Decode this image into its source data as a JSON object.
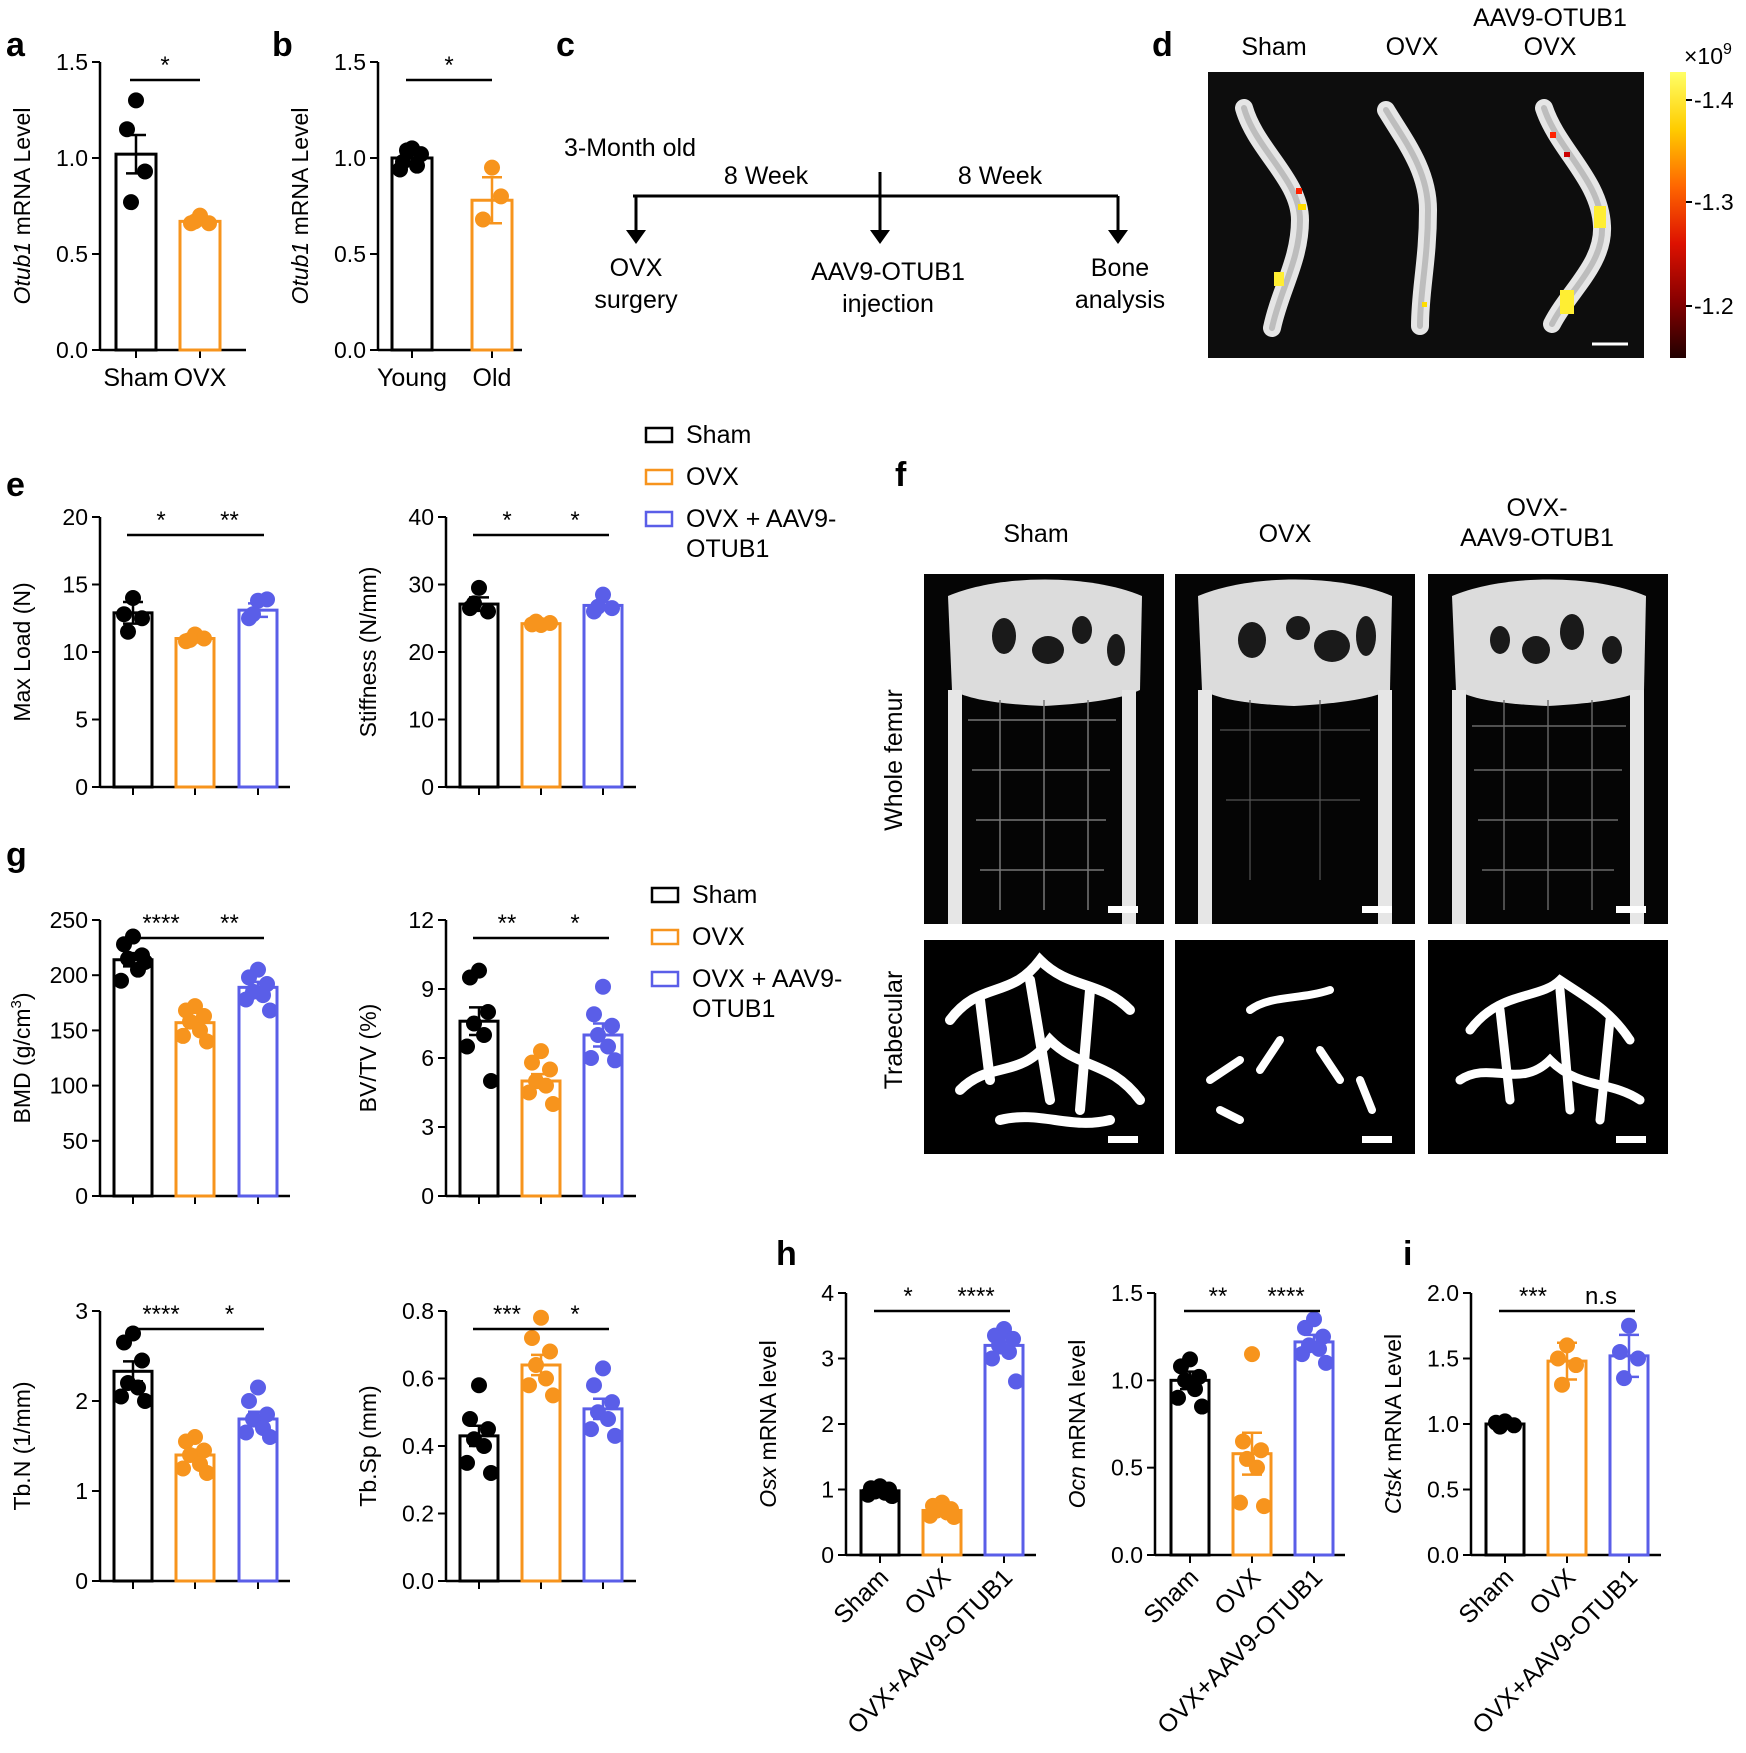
{
  "panel_labels": [
    "a",
    "b",
    "c",
    "d",
    "e",
    "f",
    "g",
    "h",
    "i"
  ],
  "colors": {
    "sham": "#000000",
    "ovx": "#f7941d",
    "aav": "#5a5ee8",
    "text": "#000000"
  },
  "legend": {
    "entries": [
      "Sham",
      "OVX",
      "OVX + AAV9-",
      "OTUB1"
    ]
  },
  "timeline": {
    "start_label": "3-Month old",
    "interval1": "8 Week",
    "interval2": "8 Week",
    "step1": [
      "OVX",
      "surgery"
    ],
    "step2": [
      "AAV9-OTUB1",
      "injection"
    ],
    "step3": [
      "Bone",
      "analysis"
    ]
  },
  "imaging": {
    "headers": [
      "Sham",
      "OVX",
      "AAV9-OTUB1",
      "OVX"
    ],
    "colorbar_exponent_base": "×10",
    "colorbar_exponent_power": "9",
    "colorbar_ticks": [
      "-1.4",
      "-1.3",
      "-1.2"
    ],
    "colorbar_gradient": [
      "#ffff66",
      "#ffcc00",
      "#ff6600",
      "#dd1100",
      "#880000",
      "#220000"
    ]
  },
  "micro_ct": {
    "headers": [
      "Sham",
      "OVX",
      "OVX-",
      "AAV9-OTUB1"
    ],
    "row_labels": [
      "Whole femur",
      "Trabecular"
    ]
  },
  "chart_data": [
    {
      "id": "a",
      "type": "bar",
      "ylabel_italic": "Otub1",
      "ylabel_rest": " mRNA Level",
      "categories": [
        "Sham",
        "OVX"
      ],
      "colors": [
        "sham",
        "ovx"
      ],
      "means": [
        1.02,
        0.67
      ],
      "sem": [
        0.1,
        0.02
      ],
      "points": [
        [
          1.3,
          1.15,
          0.93,
          0.77
        ],
        [
          0.7,
          0.66,
          0.66,
          0.67
        ]
      ],
      "ylim": [
        0,
        1.5
      ],
      "yticks": [
        "0.0",
        "0.5",
        "1.0",
        "1.5"
      ],
      "significance": [
        {
          "from": 0,
          "to": 1,
          "label": "*"
        }
      ]
    },
    {
      "id": "b",
      "type": "bar",
      "ylabel_italic": "Otub1",
      "ylabel_rest": " mRNA Level",
      "categories": [
        "Young",
        "Old"
      ],
      "colors": [
        "sham",
        "ovx"
      ],
      "means": [
        1.0,
        0.78
      ],
      "sem": [
        0.03,
        0.12
      ],
      "points": [
        [
          1.05,
          0.98,
          1.02,
          1.04,
          0.96,
          0.94
        ],
        [
          0.95,
          0.68,
          0.8
        ]
      ],
      "ylim": [
        0,
        1.5
      ],
      "yticks": [
        "0.0",
        "0.5",
        "1.0",
        "1.5"
      ],
      "significance": [
        {
          "from": 0,
          "to": 1,
          "label": "*"
        }
      ]
    },
    {
      "id": "e1",
      "type": "bar",
      "ylabel_italic": "",
      "ylabel_rest": "Max Load (N)",
      "categories": [],
      "colors": [
        "sham",
        "ovx",
        "aav"
      ],
      "means": [
        12.9,
        11.0,
        13.1
      ],
      "sem": [
        0.8,
        0.3,
        0.5
      ],
      "points": [
        [
          14.0,
          12.8,
          12.5,
          11.5
        ],
        [
          11.3,
          10.8,
          11.0,
          10.9
        ],
        [
          13.8,
          12.5,
          13.9,
          12.8
        ]
      ],
      "ylim": [
        0,
        20
      ],
      "yticks": [
        "0",
        "5",
        "10",
        "15",
        "20"
      ],
      "significance": [
        {
          "from": 0,
          "to": 1,
          "label": "*"
        },
        {
          "from": 1,
          "to": 2,
          "label": "**"
        }
      ]
    },
    {
      "id": "e2",
      "type": "bar",
      "ylabel_italic": "",
      "ylabel_rest": "Stiffness (N/mm)",
      "categories": [],
      "colors": [
        "sham",
        "ovx",
        "aav"
      ],
      "means": [
        27.1,
        24.2,
        26.9
      ],
      "sem": [
        1.0,
        0.2,
        0.5
      ],
      "points": [
        [
          29.5,
          26.5,
          26.0,
          27.2
        ],
        [
          24.0,
          24.1,
          24.3,
          24.5
        ],
        [
          28.5,
          26.0,
          26.5,
          26.7
        ]
      ],
      "ylim": [
        0,
        40
      ],
      "yticks": [
        "0",
        "10",
        "20",
        "30",
        "40"
      ],
      "significance": [
        {
          "from": 0,
          "to": 1,
          "label": "*"
        },
        {
          "from": 1,
          "to": 2,
          "label": "*"
        }
      ]
    },
    {
      "id": "g1",
      "type": "bar",
      "ylabel_italic": "",
      "ylabel_rest": "BMD (g/cm",
      "ylabel_sup": "3",
      "ylabel_end": ")",
      "categories": [],
      "colors": [
        "sham",
        "ovx",
        "aav"
      ],
      "means": [
        214,
        157,
        189
      ],
      "sem": [
        6,
        5,
        5
      ],
      "points": [
        [
          235,
          228,
          218,
          215,
          205,
          195,
          212
        ],
        [
          172,
          168,
          163,
          158,
          150,
          145,
          140
        ],
        [
          205,
          198,
          192,
          185,
          182,
          178,
          168
        ]
      ],
      "ylim": [
        0,
        250
      ],
      "yticks": [
        "0",
        "50",
        "100",
        "150",
        "200",
        "250"
      ],
      "significance": [
        {
          "from": 0,
          "to": 1,
          "label": "****"
        },
        {
          "from": 1,
          "to": 2,
          "label": "**"
        }
      ]
    },
    {
      "id": "g2",
      "type": "bar",
      "ylabel_italic": "",
      "ylabel_rest": "BV/TV (%)",
      "categories": [],
      "colors": [
        "sham",
        "ovx",
        "aav"
      ],
      "means": [
        7.6,
        5.0,
        7.0
      ],
      "sem": [
        0.6,
        0.3,
        0.5
      ],
      "points": [
        [
          9.8,
          9.5,
          8.0,
          7.5,
          7.0,
          6.5,
          5.0
        ],
        [
          6.3,
          5.8,
          5.5,
          5.0,
          4.8,
          4.5,
          4.0
        ],
        [
          9.1,
          7.9,
          7.4,
          7.0,
          6.5,
          6.0,
          5.9
        ]
      ],
      "ylim": [
        0,
        12
      ],
      "yticks": [
        "0",
        "3",
        "6",
        "9",
        "12"
      ],
      "significance": [
        {
          "from": 0,
          "to": 1,
          "label": "**"
        },
        {
          "from": 1,
          "to": 2,
          "label": "*"
        }
      ]
    },
    {
      "id": "g3",
      "type": "bar",
      "ylabel_italic": "",
      "ylabel_rest": "Tb.N (1/mm)",
      "categories": [],
      "colors": [
        "sham",
        "ovx",
        "aav"
      ],
      "means": [
        2.33,
        1.4,
        1.8
      ],
      "sem": [
        0.11,
        0.06,
        0.08
      ],
      "points": [
        [
          2.75,
          2.65,
          2.45,
          2.2,
          2.15,
          2.05,
          2.0
        ],
        [
          1.6,
          1.55,
          1.45,
          1.4,
          1.3,
          1.25,
          1.2
        ],
        [
          2.15,
          2.0,
          1.85,
          1.8,
          1.7,
          1.65,
          1.6
        ]
      ],
      "ylim": [
        0,
        3
      ],
      "yticks": [
        "0",
        "1",
        "2",
        "3"
      ],
      "significance": [
        {
          "from": 0,
          "to": 1,
          "label": "****"
        },
        {
          "from": 1,
          "to": 2,
          "label": "*"
        }
      ]
    },
    {
      "id": "g4",
      "type": "bar",
      "ylabel_italic": "",
      "ylabel_rest": "Tb.Sp (mm)",
      "categories": [],
      "colors": [
        "sham",
        "ovx",
        "aav"
      ],
      "means": [
        0.43,
        0.64,
        0.51
      ],
      "sem": [
        0.03,
        0.03,
        0.03
      ],
      "points": [
        [
          0.58,
          0.48,
          0.45,
          0.42,
          0.4,
          0.35,
          0.32
        ],
        [
          0.78,
          0.72,
          0.68,
          0.64,
          0.6,
          0.58,
          0.55
        ],
        [
          0.63,
          0.58,
          0.53,
          0.5,
          0.48,
          0.45,
          0.43
        ]
      ],
      "ylim": [
        0,
        0.8
      ],
      "yticks": [
        "0.0",
        "0.2",
        "0.4",
        "0.6",
        "0.8"
      ],
      "significance": [
        {
          "from": 0,
          "to": 1,
          "label": "***"
        },
        {
          "from": 1,
          "to": 2,
          "label": "*"
        }
      ]
    },
    {
      "id": "h1",
      "type": "bar",
      "ylabel_italic": "Osx",
      "ylabel_rest": " mRNA level",
      "categories": [
        "Sham",
        "OVX",
        "OVX+AAV9-OTUB1"
      ],
      "colors": [
        "sham",
        "ovx",
        "aav"
      ],
      "means": [
        0.98,
        0.68,
        3.2
      ],
      "sem": [
        0.03,
        0.04,
        0.12
      ],
      "points": [
        [
          1.05,
          1.02,
          1.0,
          0.97,
          0.95,
          0.92,
          0.9
        ],
        [
          0.8,
          0.75,
          0.7,
          0.68,
          0.65,
          0.6,
          0.58
        ],
        [
          3.45,
          3.35,
          3.3,
          3.2,
          3.1,
          3.0,
          2.65
        ]
      ],
      "ylim": [
        0,
        4
      ],
      "yticks": [
        "0",
        "1",
        "2",
        "3",
        "4"
      ],
      "significance": [
        {
          "from": 0,
          "to": 1,
          "label": "*"
        },
        {
          "from": 1,
          "to": 2,
          "label": "****"
        }
      ]
    },
    {
      "id": "h2",
      "type": "bar",
      "ylabel_italic": "Ocn",
      "ylabel_rest": " mRNA level",
      "categories": [
        "Sham",
        "OVX",
        "OVX+AAV9-OTUB1"
      ],
      "colors": [
        "sham",
        "ovx",
        "aav"
      ],
      "means": [
        1.0,
        0.58,
        1.22
      ],
      "sem": [
        0.05,
        0.12,
        0.04
      ],
      "points": [
        [
          1.12,
          1.08,
          1.02,
          1.0,
          0.95,
          0.9,
          0.85
        ],
        [
          1.15,
          0.65,
          0.6,
          0.55,
          0.5,
          0.3,
          0.28
        ],
        [
          1.35,
          1.3,
          1.25,
          1.2,
          1.18,
          1.15,
          1.1
        ]
      ],
      "ylim": [
        0,
        1.5
      ],
      "yticks": [
        "0.0",
        "0.5",
        "1.0",
        "1.5"
      ],
      "significance": [
        {
          "from": 0,
          "to": 1,
          "label": "**"
        },
        {
          "from": 1,
          "to": 2,
          "label": "****"
        }
      ]
    },
    {
      "id": "i",
      "type": "bar",
      "ylabel_italic": "Ctsk",
      "ylabel_rest": " mRNA Level",
      "categories": [
        "Sham",
        "OVX",
        "OVX+AAV9-OTUB1"
      ],
      "colors": [
        "sham",
        "ovx",
        "aav"
      ],
      "means": [
        1.0,
        1.48,
        1.52
      ],
      "sem": [
        0.02,
        0.14,
        0.16
      ],
      "points": [
        [
          1.02,
          1.01,
          0.99,
          0.98
        ],
        [
          1.6,
          1.5,
          1.45,
          1.3
        ],
        [
          1.75,
          1.55,
          1.5,
          1.35
        ]
      ],
      "ylim": [
        0,
        2
      ],
      "yticks": [
        "0.0",
        "0.5",
        "1.0",
        "1.5",
        "2.0"
      ],
      "significance": [
        {
          "from": 0,
          "to": 1,
          "label": "***"
        },
        {
          "from": 1,
          "to": 2,
          "label": "n.s"
        }
      ]
    }
  ]
}
